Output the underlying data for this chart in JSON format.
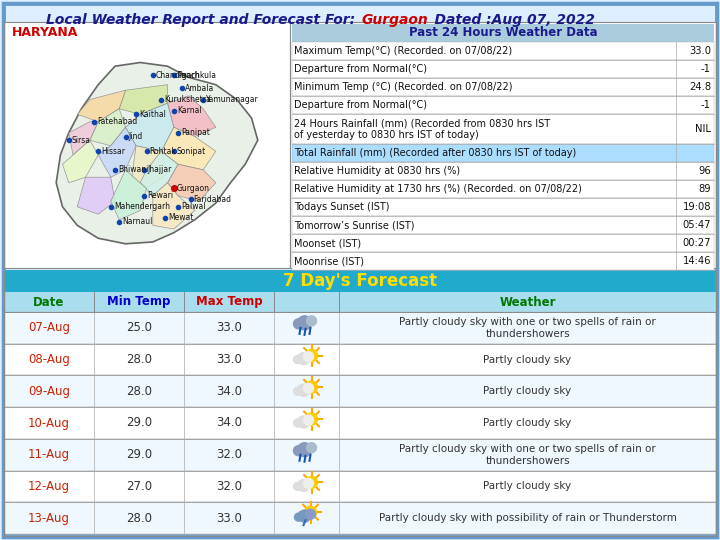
{
  "title_plain": "Local Weather Report and Forecast For: ",
  "city": "Gurgaon",
  "date": "    Dated :Aug 07, 2022",
  "bg_color": "#ddeeff",
  "past24_title": "Past 24 Hours Weather Data",
  "past24_rows": [
    [
      "Maximum Temp(°C) (Recorded. on 07/08/22)",
      "33.0"
    ],
    [
      "Departure from Normal(°C)",
      "-1"
    ],
    [
      "Minimum Temp (°C) (Recorded. on 07/08/22)",
      "24.8"
    ],
    [
      "Departure from Normal(°C)\n24 Hours Rainfall (mm) (Recorded from 0830 hrs IST\nof yesterday to 0830 hrs IST of today)",
      "-1\n\nNIL"
    ],
    [
      "Total Rainfall (mm) (Recorded after 0830 hrs IST of today)",
      ""
    ],
    [
      "Relative Humidity at 0830 hrs (%)",
      "96"
    ],
    [
      "Relative Humidity at 1730 hrs (%) (Recorded. on 07/08/22)",
      "89"
    ],
    [
      "Todays Sunset (IST)",
      "19:08"
    ],
    [
      "Tomorrow’s Sunrise (IST)",
      "05:47"
    ],
    [
      "Moonset (IST)",
      "00:27"
    ],
    [
      "Moonrise (IST)",
      "14:46"
    ]
  ],
  "highlight_row": 4,
  "forecast_title": "7 Day's Forecast",
  "forecast_header": [
    "Date",
    "Min Temp",
    "Max Temp",
    "Weather"
  ],
  "forecast_rows": [
    [
      "07-Aug",
      "25.0",
      "33.0",
      "rain",
      "Partly cloudy sky with one or two spells of rain or\nthundershowers"
    ],
    [
      "08-Aug",
      "28.0",
      "33.0",
      "sun_cloud",
      "Partly cloudy sky"
    ],
    [
      "09-Aug",
      "28.0",
      "34.0",
      "sun_cloud",
      "Partly cloudy sky"
    ],
    [
      "10-Aug",
      "29.0",
      "34.0",
      "sun_cloud",
      "Partly cloudy sky"
    ],
    [
      "11-Aug",
      "29.0",
      "32.0",
      "rain",
      "Partly cloudy sky with one or two spells of rain or\nthundershowers"
    ],
    [
      "12-Aug",
      "27.0",
      "32.0",
      "sun_cloud",
      "Partly cloudy sky"
    ],
    [
      "13-Aug",
      "28.0",
      "33.0",
      "thunder_rain",
      "Partly cloudy sky with possibility of rain or Thunderstorm"
    ]
  ],
  "haryana_label": "HARYANA",
  "title_color": "#1a1a8c",
  "city_color": "#cc0000",
  "forecast_title_color": "#ffdd00",
  "header_date_color": "#007700",
  "header_mintemp_color": "#0000cc",
  "header_maxtemp_color": "#cc0000",
  "header_weather_color": "#007700",
  "row_date_color": "#cc2200",
  "row_temp_color": "#333333",
  "row_weather_color": "#333333",
  "teal_bar_color": "#22aacc",
  "light_blue_header": "#aaddee",
  "past24_header_bg": "#aaccdd",
  "highlight_bg": "#aaddff",
  "border_color": "#6699cc"
}
